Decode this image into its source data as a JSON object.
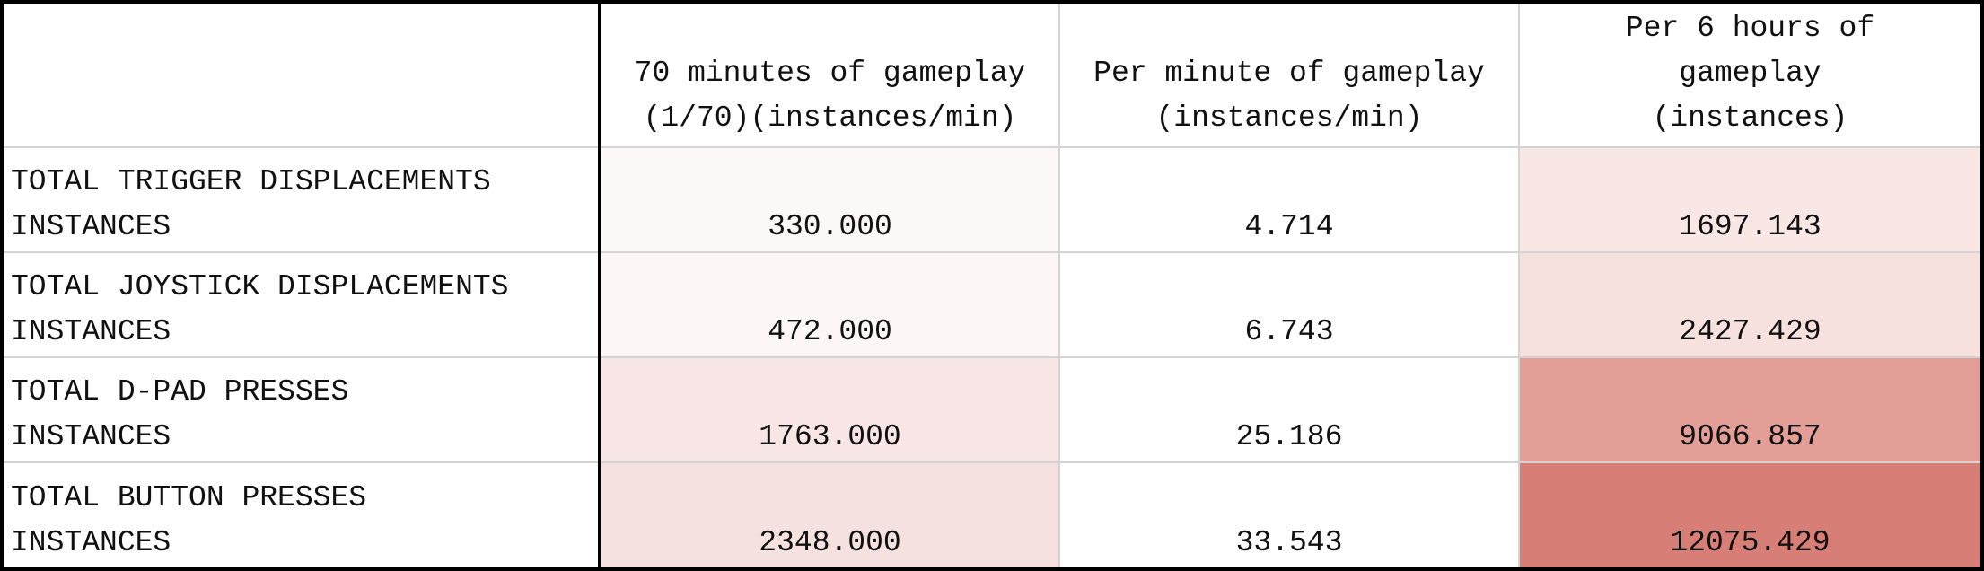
{
  "table": {
    "columns": [
      "",
      "70 minutes of gameplay\n(1/70)(instances/min)",
      "Per minute of gameplay\n(instances/min)",
      "Per 6 hours of\ngameplay\n(instances)"
    ],
    "rows": [
      {
        "label_line1": "TOTAL TRIGGER DISPLACEMENTS",
        "label_line2": "INSTANCES",
        "values": [
          "330.000",
          "4.714",
          "1697.143"
        ],
        "colors": [
          "#fdf8f8",
          "#ffffff",
          "#f9e7e6"
        ]
      },
      {
        "label_line1": "TOTAL JOYSTICK DISPLACEMENTS",
        "label_line2": "INSTANCES",
        "values": [
          "472.000",
          "6.743",
          "2427.429"
        ],
        "colors": [
          "#fcf6f6",
          "#ffffff",
          "#f6e1df"
        ]
      },
      {
        "label_line1": "TOTAL D-PAD PRESSES",
        "label_line2": "INSTANCES",
        "values": [
          "1763.000",
          "25.186",
          "9066.857"
        ],
        "colors": [
          "#f7e6e5",
          "#ffffff",
          "#e29e97"
        ]
      },
      {
        "label_line1": "TOTAL BUTTON PRESSES",
        "label_line2": "INSTANCES",
        "values": [
          "2348.000",
          "33.543",
          "12075.429"
        ],
        "colors": [
          "#f5e1df",
          "#ffffff",
          "#d77f76"
        ]
      }
    ]
  }
}
